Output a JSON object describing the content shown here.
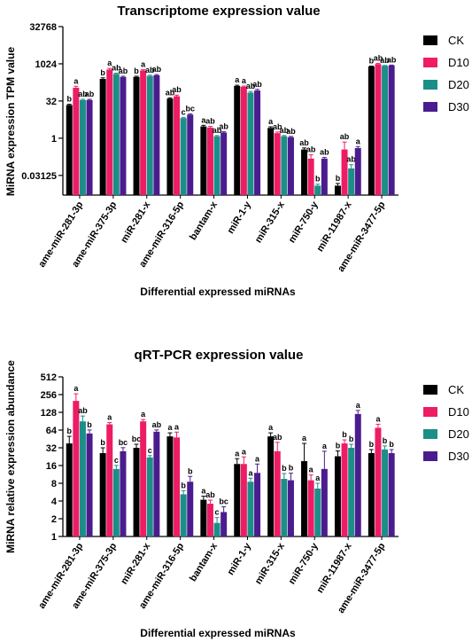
{
  "chart_data": [
    {
      "type": "bar",
      "title": "Transcriptome expression value",
      "xlabel": "Differential expressed miRNAs",
      "ylabel": "MiRNA expression TPM value",
      "yscale": "log2",
      "ylim": [
        0.005,
        32768
      ],
      "yticks": [
        "32768",
        "1024",
        "32",
        "1",
        "0.03125"
      ],
      "ytick_values": [
        32768,
        1024,
        32,
        1,
        0.03125
      ],
      "grid": false,
      "legend_position": "right",
      "categories": [
        "ame-miR-281-3p",
        "ame-miR-375-3p",
        "miR-281-x",
        "ame-miR-316-5p",
        "bantam-x",
        "miR-1-y",
        "miR-315-x",
        "miR-750-y",
        "miR-11987-x",
        "ame-miR-3477-5p"
      ],
      "series": [
        {
          "name": "CK",
          "color": "#000000",
          "values": [
            22,
            250,
            300,
            40,
            3.0,
            130,
            2.6,
            0.35,
            0.012,
            800
          ],
          "errors": [
            0.1,
            0.15,
            0.1,
            0.1,
            0.15,
            0.1,
            0.15,
            0.2,
            0.3,
            0.05
          ],
          "labels": [
            "b",
            "b",
            "b",
            "ab",
            "a",
            "a",
            "a",
            "ab",
            "b",
            "b"
          ]
        },
        {
          "name": "D10",
          "color": "#ee1c64",
          "values": [
            110,
            600,
            550,
            50,
            2.7,
            120,
            1.6,
            0.15,
            0.35,
            1000
          ],
          "errors": [
            0.2,
            0.15,
            0.1,
            0.15,
            0.15,
            0.1,
            0.15,
            0.5,
            1.0,
            0.1
          ],
          "labels": [
            "a",
            "a",
            "a",
            "ab",
            "ab",
            "a",
            "ab",
            "ab",
            "ab",
            "ab"
          ]
        },
        {
          "name": "D20",
          "color": "#1c8e88",
          "values": [
            35,
            400,
            330,
            6.5,
            1.2,
            70,
            1.2,
            0.012,
            0.06,
            850
          ],
          "errors": [
            0.1,
            0.1,
            0.1,
            0.1,
            0.1,
            0.15,
            0.1,
            0.2,
            0.5,
            0.05
          ],
          "labels": [
            "ab",
            "ab",
            "ab",
            "c",
            "ab",
            "ab",
            "ab",
            "b",
            "ab",
            "ab"
          ]
        },
        {
          "name": "D30",
          "color": "#4b1c8e",
          "values": [
            35,
            300,
            350,
            9,
            1.7,
            85,
            1.1,
            0.15,
            0.4,
            880
          ],
          "errors": [
            0.1,
            0.1,
            0.1,
            0.1,
            0.1,
            0.15,
            0.1,
            0.15,
            0.2,
            0.05
          ],
          "labels": [
            "ab",
            "ab",
            "ab",
            "bc",
            "ab",
            "ab",
            "ab",
            "ab",
            "a",
            "ab"
          ]
        }
      ]
    },
    {
      "type": "bar",
      "title": "qRT-PCR expression value",
      "xlabel": "Differential expressed miRNAs",
      "ylabel": "MiRNA relative expression abundance",
      "yscale": "log2",
      "ylim": [
        1,
        512
      ],
      "yticks": [
        "512",
        "256",
        "128",
        "64",
        "32",
        "16",
        "8",
        "4",
        "2",
        "1"
      ],
      "ytick_values": [
        512,
        256,
        128,
        64,
        32,
        16,
        8,
        4,
        2,
        1
      ],
      "grid": false,
      "legend_position": "right",
      "categories": [
        "ame-miR-281-3p",
        "ame-miR-375-3p",
        "miR-281-x",
        "ame-miR-316-5p",
        "bantam-x",
        "miR-1-y",
        "miR-315-x",
        "miR-750-y",
        "miR-11987-x",
        "ame-miR-3477-5p"
      ],
      "series": [
        {
          "name": "CK",
          "color": "#000000",
          "values": [
            38,
            26,
            32,
            50,
            4.2,
            17,
            50,
            19,
            23,
            26
          ],
          "errors": [
            0.4,
            0.3,
            0.2,
            0.2,
            0.2,
            0.3,
            0.2,
            1.0,
            0.3,
            0.2
          ],
          "labels": [
            "b",
            "b",
            "bc",
            "a",
            "a",
            "a",
            "a",
            "a",
            "b",
            "b"
          ]
        },
        {
          "name": "D10",
          "color": "#ee1c64",
          "values": [
            200,
            80,
            90,
            48,
            3.6,
            17,
            28,
            9.0,
            38,
            70
          ],
          "errors": [
            0.4,
            0.1,
            0.1,
            0.3,
            0.2,
            0.4,
            0.5,
            0.3,
            0.2,
            0.2
          ],
          "labels": [
            "a",
            "a",
            "a",
            "a",
            "ab",
            "a",
            "ab",
            "a",
            "b",
            "a"
          ]
        },
        {
          "name": "D20",
          "color": "#1c8e88",
          "values": [
            90,
            14,
            22,
            5.2,
            1.7,
            8.5,
            9.5,
            6.5,
            32,
            30
          ],
          "errors": [
            0.3,
            0.2,
            0.1,
            0.2,
            0.3,
            0.2,
            0.3,
            0.3,
            0.2,
            0.2
          ],
          "labels": [
            "ab",
            "c",
            "c",
            "b",
            "c",
            "a",
            "b",
            "a",
            "b",
            "b"
          ]
        },
        {
          "name": "D30",
          "color": "#4b1c8e",
          "values": [
            56,
            28,
            60,
            8.5,
            2.6,
            12,
            9.0,
            14,
            120,
            26
          ],
          "errors": [
            0.2,
            0.2,
            0.1,
            0.3,
            0.3,
            0.5,
            0.4,
            1.0,
            0.2,
            0.2
          ],
          "labels": [
            "b",
            "bc",
            "ab",
            "b",
            "bc",
            "a",
            "b",
            "a",
            "a",
            "b"
          ]
        }
      ]
    }
  ]
}
